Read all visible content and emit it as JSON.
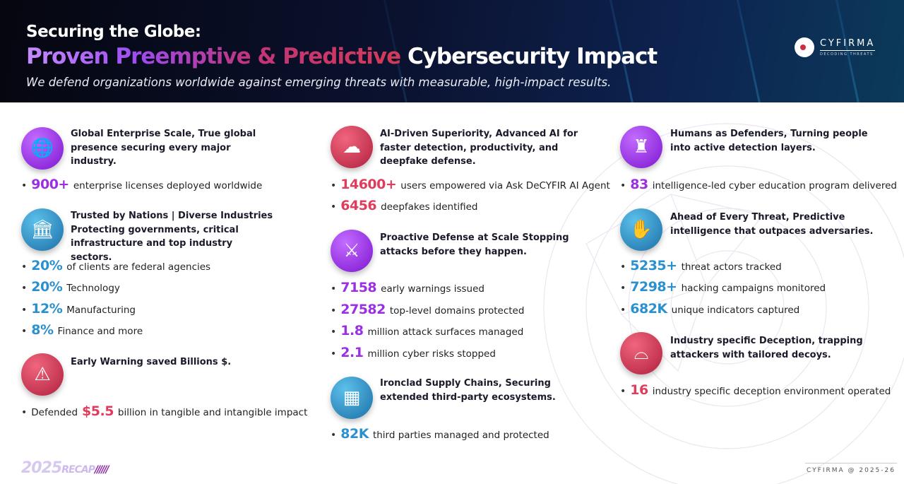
{
  "header": {
    "title_line1": "Securing the Globe:",
    "title_gradient": "Proven Preemptive & Predictive",
    "title_white": "Cybersecurity Impact",
    "subtitle": "We defend organizations worldwide against emerging threats with measurable, high-impact results.",
    "logo_name": "CYFIRMA",
    "logo_tagline": "DECODING THREATS"
  },
  "colors": {
    "purple": "#9b2fe3",
    "red": "#e03c5c",
    "blue": "#2b90d0"
  },
  "sections": [
    {
      "icon": "globe-icon",
      "icon_color": "purple",
      "heading": "Global Enterprise Scale, True global presence securing every major industry.",
      "stats": [
        {
          "value": "900+",
          "color": "purple",
          "text": "enterprise licenses deployed worldwide"
        }
      ]
    },
    {
      "icon": "government-building-icon",
      "icon_color": "blue",
      "heading": "Trusted by Nations | Diverse Industries Protecting governments, critical infrastructure and top industry sectors.",
      "stats": [
        {
          "value": "20%",
          "color": "blue",
          "text": "of clients are federal agencies"
        },
        {
          "value": "20%",
          "color": "blue",
          "text": "Technology"
        },
        {
          "value": "12%",
          "color": "blue",
          "text": "Manufacturing"
        },
        {
          "value": "8%",
          "color": "blue",
          "text": "Finance and more"
        }
      ]
    },
    {
      "icon": "warning-icon",
      "icon_color": "red",
      "heading": "Early Warning saved Billions $.",
      "stats": [
        {
          "prefix": "Defended",
          "value": "$5.5",
          "color": "red",
          "text": "billion in tangible and intangible impact"
        }
      ]
    },
    {
      "icon": "ai-brain-cloud-icon",
      "icon_color": "red",
      "heading": "AI-Driven Superiority, Advanced AI for faster detection, productivity, and deepfake defense.",
      "stats": [
        {
          "value": "14600+",
          "color": "red",
          "text": "users empowered via Ask DeCYFIR AI Agent"
        },
        {
          "value": "6456",
          "color": "red",
          "text": "deepfakes identified"
        }
      ]
    },
    {
      "icon": "shield-sword-icon",
      "icon_color": "purple",
      "heading": "Proactive Defense at Scale Stopping attacks before they happen.",
      "stats": [
        {
          "value": "7158",
          "color": "purple",
          "text": "early warnings issued"
        },
        {
          "value": "27582",
          "color": "purple",
          "text": "top-level domains protected"
        },
        {
          "value": "1.8",
          "color": "purple",
          "text": "million attack surfaces managed"
        },
        {
          "value": "2.1",
          "color": "purple",
          "text": "million cyber risks stopped"
        }
      ]
    },
    {
      "icon": "supply-chain-icon",
      "icon_color": "blue",
      "heading": "Ironclad Supply Chains, Securing extended third-party ecosystems.",
      "stats": [
        {
          "value": "82K",
          "color": "blue",
          "text": "third parties managed and protected"
        }
      ]
    },
    {
      "icon": "human-defender-icon",
      "icon_color": "purple",
      "heading": "Humans as Defenders, Turning people into active detection layers.",
      "stats": [
        {
          "value": "83",
          "color": "purple",
          "text": "intelligence-led cyber education program delivered"
        }
      ]
    },
    {
      "icon": "hand-crystal-ball-icon",
      "icon_color": "blue",
      "heading": "Ahead of Every Threat, Predictive intelligence that outpaces adversaries.",
      "stats": [
        {
          "value": "5235+",
          "color": "blue",
          "text": "threat actors tracked"
        },
        {
          "value": "7298+",
          "color": "blue",
          "text": "hacking campaigns monitored"
        },
        {
          "value": "682K",
          "color": "blue",
          "text": "unique indicators captured"
        }
      ]
    },
    {
      "icon": "trap-icon",
      "icon_color": "red",
      "heading": "Industry specific Deception,  trapping attackers with tailored decoys.",
      "stats": [
        {
          "value": "16",
          "color": "red",
          "text": "industry specific deception environment operated"
        }
      ]
    }
  ],
  "footer": {
    "recap_year": "2025",
    "recap_label": "RECAP",
    "recap_slashes": "//////",
    "copyright": "CYFIRMA @ 2025-26"
  }
}
